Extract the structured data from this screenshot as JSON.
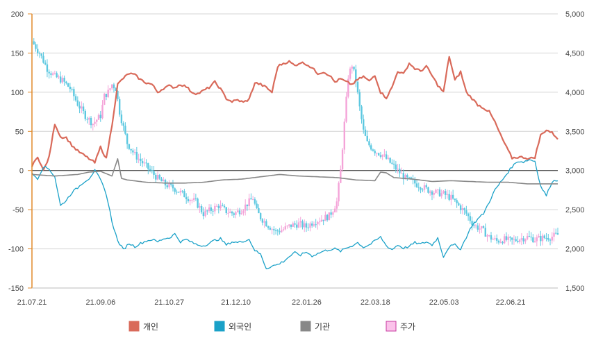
{
  "chart_data": {
    "type": "line",
    "x_ticks": [
      "21.07.21",
      "21.09.06",
      "21.10.27",
      "21.12.10",
      "22.01.26",
      "22.03.18",
      "22.05.03",
      "22.06.21"
    ],
    "y_left": {
      "min": -150,
      "max": 200,
      "ticks": [
        200,
        150,
        100,
        50,
        0,
        -50,
        -100,
        -150
      ]
    },
    "y_right": {
      "min": 1500,
      "max": 5000,
      "ticks": [
        "5,000",
        "4,500",
        "4,000",
        "3,500",
        "3,000",
        "2,500",
        "2,000",
        "1,500"
      ]
    },
    "grid": true,
    "legend_position": "bottom",
    "x_count": 240,
    "series": [
      {
        "name": "개인",
        "color": "#d96a5a",
        "axis": "left",
        "keyframes": [
          [
            0,
            5
          ],
          [
            3,
            18
          ],
          [
            6,
            0
          ],
          [
            9,
            17
          ],
          [
            12,
            60
          ],
          [
            15,
            43
          ],
          [
            18,
            42
          ],
          [
            21,
            32
          ],
          [
            24,
            25
          ],
          [
            27,
            20
          ],
          [
            30,
            15
          ],
          [
            33,
            10
          ],
          [
            36,
            30
          ],
          [
            39,
            15
          ],
          [
            42,
            58
          ],
          [
            45,
            110
          ],
          [
            48,
            118
          ],
          [
            51,
            124
          ],
          [
            54,
            122
          ],
          [
            57,
            116
          ],
          [
            60,
            112
          ],
          [
            63,
            110
          ],
          [
            66,
            100
          ],
          [
            69,
            105
          ],
          [
            72,
            108
          ],
          [
            75,
            106
          ],
          [
            78,
            110
          ],
          [
            81,
            107
          ],
          [
            84,
            100
          ],
          [
            87,
            98
          ],
          [
            90,
            102
          ],
          [
            93,
            106
          ],
          [
            96,
            113
          ],
          [
            99,
            104
          ],
          [
            102,
            92
          ],
          [
            105,
            88
          ],
          [
            108,
            90
          ],
          [
            111,
            87
          ],
          [
            114,
            91
          ],
          [
            117,
            112
          ],
          [
            120,
            110
          ],
          [
            123,
            106
          ],
          [
            126,
            100
          ],
          [
            129,
            133
          ],
          [
            132,
            137
          ],
          [
            135,
            139
          ],
          [
            138,
            134
          ],
          [
            141,
            138
          ],
          [
            144,
            136
          ],
          [
            147,
            131
          ],
          [
            150,
            124
          ],
          [
            153,
            126
          ],
          [
            156,
            122
          ],
          [
            159,
            113
          ],
          [
            162,
            117
          ],
          [
            165,
            113
          ],
          [
            168,
            110
          ],
          [
            171,
            116
          ],
          [
            174,
            120
          ],
          [
            177,
            114
          ],
          [
            180,
            122
          ],
          [
            183,
            100
          ],
          [
            186,
            93
          ],
          [
            189,
            106
          ],
          [
            192,
            127
          ],
          [
            195,
            123
          ],
          [
            198,
            137
          ],
          [
            201,
            130
          ],
          [
            204,
            127
          ],
          [
            207,
            133
          ],
          [
            210,
            121
          ],
          [
            213,
            109
          ],
          [
            216,
            100
          ],
          [
            219,
            146
          ],
          [
            222,
            115
          ],
          [
            225,
            126
          ],
          [
            228,
            100
          ],
          [
            231,
            92
          ],
          [
            234,
            84
          ],
          [
            237,
            80
          ],
          [
            240,
            75
          ],
          [
            243,
            62
          ],
          [
            246,
            45
          ],
          [
            249,
            30
          ],
          [
            252,
            16
          ],
          [
            255,
            17
          ],
          [
            258,
            17
          ],
          [
            261,
            15
          ],
          [
            264,
            17
          ],
          [
            267,
            45
          ],
          [
            270,
            52
          ],
          [
            273,
            48
          ],
          [
            276,
            41
          ]
        ]
      },
      {
        "name": "외국인",
        "color": "#1aa1c8",
        "axis": "left",
        "keyframes": [
          [
            0,
            -4
          ],
          [
            3,
            -10
          ],
          [
            6,
            5
          ],
          [
            9,
            2
          ],
          [
            12,
            -8
          ],
          [
            15,
            -45
          ],
          [
            18,
            -38
          ],
          [
            21,
            -28
          ],
          [
            24,
            -22
          ],
          [
            27,
            -15
          ],
          [
            30,
            -10
          ],
          [
            33,
            0
          ],
          [
            36,
            -12
          ],
          [
            39,
            -30
          ],
          [
            42,
            -65
          ],
          [
            45,
            -90
          ],
          [
            48,
            -101
          ],
          [
            51,
            -93
          ],
          [
            54,
            -97
          ],
          [
            57,
            -93
          ],
          [
            60,
            -90
          ],
          [
            63,
            -88
          ],
          [
            66,
            -91
          ],
          [
            69,
            -87
          ],
          [
            72,
            -86
          ],
          [
            75,
            -81
          ],
          [
            78,
            -91
          ],
          [
            81,
            -88
          ],
          [
            84,
            -92
          ],
          [
            87,
            -95
          ],
          [
            90,
            -96
          ],
          [
            93,
            -93
          ],
          [
            96,
            -89
          ],
          [
            99,
            -87
          ],
          [
            102,
            -95
          ],
          [
            105,
            -91
          ],
          [
            108,
            -92
          ],
          [
            111,
            -90
          ],
          [
            114,
            -88
          ],
          [
            117,
            -102
          ],
          [
            120,
            -107
          ],
          [
            123,
            -125
          ],
          [
            126,
            -122
          ],
          [
            129,
            -120
          ],
          [
            132,
            -116
          ],
          [
            135,
            -110
          ],
          [
            138,
            -105
          ],
          [
            141,
            -108
          ],
          [
            144,
            -104
          ],
          [
            147,
            -109
          ],
          [
            150,
            -106
          ],
          [
            153,
            -103
          ],
          [
            156,
            -101
          ],
          [
            159,
            -100
          ],
          [
            162,
            -103
          ],
          [
            165,
            -99
          ],
          [
            168,
            -96
          ],
          [
            171,
            -92
          ],
          [
            174,
            -98
          ],
          [
            177,
            -95
          ],
          [
            180,
            -90
          ],
          [
            183,
            -85
          ],
          [
            186,
            -96
          ],
          [
            189,
            -101
          ],
          [
            192,
            -95
          ],
          [
            195,
            -99
          ],
          [
            198,
            -97
          ],
          [
            201,
            -92
          ],
          [
            204,
            -94
          ],
          [
            207,
            -91
          ],
          [
            210,
            -95
          ],
          [
            213,
            -86
          ],
          [
            216,
            -110
          ],
          [
            219,
            -97
          ],
          [
            222,
            -95
          ],
          [
            225,
            -100
          ],
          [
            228,
            -85
          ],
          [
            231,
            -70
          ],
          [
            234,
            -62
          ],
          [
            237,
            -55
          ],
          [
            240,
            -40
          ],
          [
            243,
            -25
          ],
          [
            246,
            -15
          ],
          [
            249,
            -5
          ],
          [
            252,
            5
          ],
          [
            255,
            12
          ],
          [
            258,
            11
          ],
          [
            261,
            14
          ],
          [
            264,
            12
          ],
          [
            267,
            -20
          ],
          [
            270,
            -32
          ],
          [
            273,
            -14
          ],
          [
            276,
            -12
          ]
        ]
      },
      {
        "name": "기관",
        "color": "#888888",
        "axis": "left",
        "keyframes": [
          [
            0,
            -5
          ],
          [
            6,
            -6
          ],
          [
            12,
            -7
          ],
          [
            18,
            -6
          ],
          [
            24,
            -5
          ],
          [
            30,
            -2
          ],
          [
            36,
            -1
          ],
          [
            42,
            -7
          ],
          [
            45,
            15
          ],
          [
            47,
            -10
          ],
          [
            50,
            -12
          ],
          [
            60,
            -15
          ],
          [
            70,
            -16
          ],
          [
            80,
            -16
          ],
          [
            90,
            -15
          ],
          [
            100,
            -12
          ],
          [
            110,
            -11
          ],
          [
            120,
            -8
          ],
          [
            130,
            -5
          ],
          [
            140,
            -7
          ],
          [
            150,
            -8
          ],
          [
            160,
            -9
          ],
          [
            170,
            -12
          ],
          [
            180,
            -13
          ],
          [
            183,
            -2
          ],
          [
            186,
            -3
          ],
          [
            190,
            -9
          ],
          [
            200,
            -11
          ],
          [
            210,
            -14
          ],
          [
            220,
            -13
          ],
          [
            230,
            -14
          ],
          [
            240,
            -15
          ],
          [
            250,
            -15
          ],
          [
            260,
            -17
          ],
          [
            270,
            -17
          ],
          [
            276,
            -17
          ]
        ]
      },
      {
        "name": "주가",
        "color": "#f4a3d8",
        "axis": "right",
        "style": "candles",
        "keyframes": [
          [
            0,
            4650
          ],
          [
            4,
            4500
          ],
          [
            8,
            4300
          ],
          [
            12,
            4200
          ],
          [
            16,
            4150
          ],
          [
            20,
            4050
          ],
          [
            24,
            3850
          ],
          [
            28,
            3700
          ],
          [
            32,
            3600
          ],
          [
            36,
            3700
          ],
          [
            38,
            3950
          ],
          [
            40,
            4000
          ],
          [
            42,
            4100
          ],
          [
            44,
            4050
          ],
          [
            46,
            3750
          ],
          [
            48,
            3550
          ],
          [
            50,
            3350
          ],
          [
            54,
            3200
          ],
          [
            58,
            3100
          ],
          [
            62,
            3000
          ],
          [
            66,
            2900
          ],
          [
            70,
            2820
          ],
          [
            74,
            2780
          ],
          [
            78,
            2720
          ],
          [
            82,
            2650
          ],
          [
            86,
            2600
          ],
          [
            90,
            2450
          ],
          [
            94,
            2500
          ],
          [
            98,
            2550
          ],
          [
            102,
            2480
          ],
          [
            106,
            2450
          ],
          [
            110,
            2500
          ],
          [
            114,
            2600
          ],
          [
            116,
            2650
          ],
          [
            118,
            2480
          ],
          [
            120,
            2400
          ],
          [
            124,
            2300
          ],
          [
            128,
            2220
          ],
          [
            132,
            2250
          ],
          [
            136,
            2300
          ],
          [
            140,
            2320
          ],
          [
            144,
            2280
          ],
          [
            148,
            2350
          ],
          [
            152,
            2380
          ],
          [
            156,
            2420
          ],
          [
            158,
            2500
          ],
          [
            160,
            2600
          ],
          [
            162,
            3000
          ],
          [
            164,
            3600
          ],
          [
            166,
            4200
          ],
          [
            168,
            4350
          ],
          [
            170,
            4150
          ],
          [
            172,
            3800
          ],
          [
            174,
            3500
          ],
          [
            176,
            3350
          ],
          [
            180,
            3250
          ],
          [
            184,
            3200
          ],
          [
            188,
            3100
          ],
          [
            192,
            3000
          ],
          [
            196,
            2900
          ],
          [
            200,
            2850
          ],
          [
            204,
            2800
          ],
          [
            208,
            2750
          ],
          [
            212,
            2720
          ],
          [
            216,
            2700
          ],
          [
            220,
            2650
          ],
          [
            224,
            2550
          ],
          [
            228,
            2450
          ],
          [
            232,
            2300
          ],
          [
            236,
            2250
          ],
          [
            240,
            2150
          ],
          [
            244,
            2100
          ],
          [
            248,
            2120
          ],
          [
            252,
            2100
          ],
          [
            256,
            2130
          ],
          [
            260,
            2150
          ],
          [
            264,
            2120
          ],
          [
            268,
            2140
          ],
          [
            272,
            2150
          ],
          [
            276,
            2180
          ]
        ]
      }
    ]
  }
}
